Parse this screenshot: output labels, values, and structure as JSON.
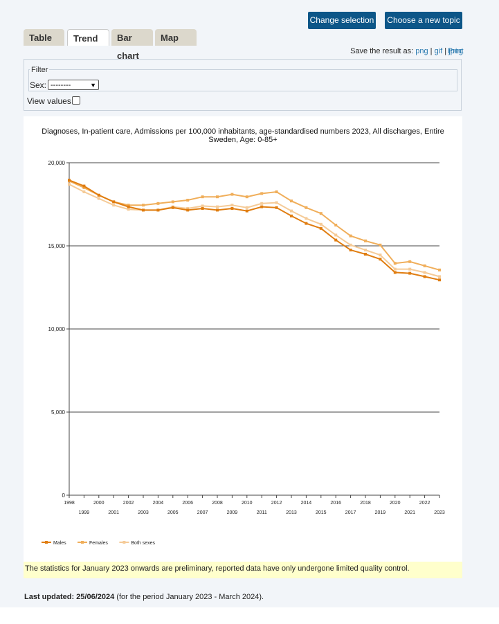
{
  "buttons": {
    "change_selection": "Change selection",
    "new_topic": "Choose a new topic"
  },
  "tabs": [
    {
      "label": "Table",
      "active": false
    },
    {
      "label": "Trend",
      "active": true
    },
    {
      "label": "Bar chart",
      "active": false
    },
    {
      "label": "Map",
      "active": false
    }
  ],
  "save": {
    "label": "Save the result as:",
    "png": "png",
    "sep": "|",
    "gif": "gif",
    "jpeg": "jpeg",
    "print": "Print"
  },
  "filter": {
    "legend": "Filter",
    "sex_label": "Sex:",
    "sex_value": "--------",
    "view_values_label": "View values:",
    "view_values_checked": false
  },
  "chart_data": {
    "type": "line",
    "title": "Diagnoses, In-patient care, Admissions per 100,000 inhabitants, age-standardised numbers 2023, All discharges, Entire Sweden, Age: 0-85+",
    "title_lines": [
      "Diagnoses, In-patient care, Admissions per 100,000 inhabitants, age-standardised numbers 2023, All discharges, Entire",
      "Sweden, Age: 0-85+"
    ],
    "xlabel": "",
    "ylabel": "",
    "x": [
      "1998",
      "1999",
      "2000",
      "2001",
      "2002",
      "2003",
      "2004",
      "2005",
      "2006",
      "2007",
      "2008",
      "2009",
      "2010",
      "2011",
      "2012",
      "2013",
      "2014",
      "2015",
      "2016",
      "2017",
      "2018",
      "2019",
      "2020",
      "2021",
      "2022",
      "2023"
    ],
    "ylim": [
      0,
      20000
    ],
    "yticks": [
      "0",
      "5,000",
      "10,000",
      "15,000",
      "20,000"
    ],
    "yticks_values": [
      0,
      5000,
      10000,
      15000,
      20000
    ],
    "grid": true,
    "legend_position": "bottom-left",
    "series": [
      {
        "name": "Males",
        "color": "#e07d10",
        "values": [
          18950,
          18600,
          18050,
          17650,
          17350,
          17150,
          17150,
          17300,
          17150,
          17250,
          17150,
          17250,
          17100,
          17350,
          17300,
          16800,
          16350,
          16050,
          15350,
          14750,
          14500,
          14200,
          13400,
          13350,
          13150,
          12950
        ]
      },
      {
        "name": "Females",
        "color": "#f0ae5a",
        "values": [
          18900,
          18500,
          18050,
          17650,
          17450,
          17450,
          17550,
          17650,
          17750,
          17950,
          17950,
          18100,
          17950,
          18150,
          18250,
          17700,
          17300,
          16950,
          16250,
          15600,
          15300,
          15050,
          13950,
          14050,
          13800,
          13550
        ]
      },
      {
        "name": "Both sexes",
        "color": "#f5cb98",
        "values": [
          18700,
          18250,
          17850,
          17450,
          17200,
          17150,
          17150,
          17350,
          17250,
          17400,
          17350,
          17450,
          17300,
          17550,
          17600,
          17100,
          16650,
          16300,
          15650,
          15050,
          14750,
          14450,
          13600,
          13600,
          13400,
          13150
        ]
      }
    ]
  },
  "note": "The statistics for January 2023 onwards are preliminary, reported data have only undergone limited quality control.",
  "updated": {
    "label": "Last updated: 25/06/2024",
    "period": " (for the period January 2023 - March 2024)."
  }
}
